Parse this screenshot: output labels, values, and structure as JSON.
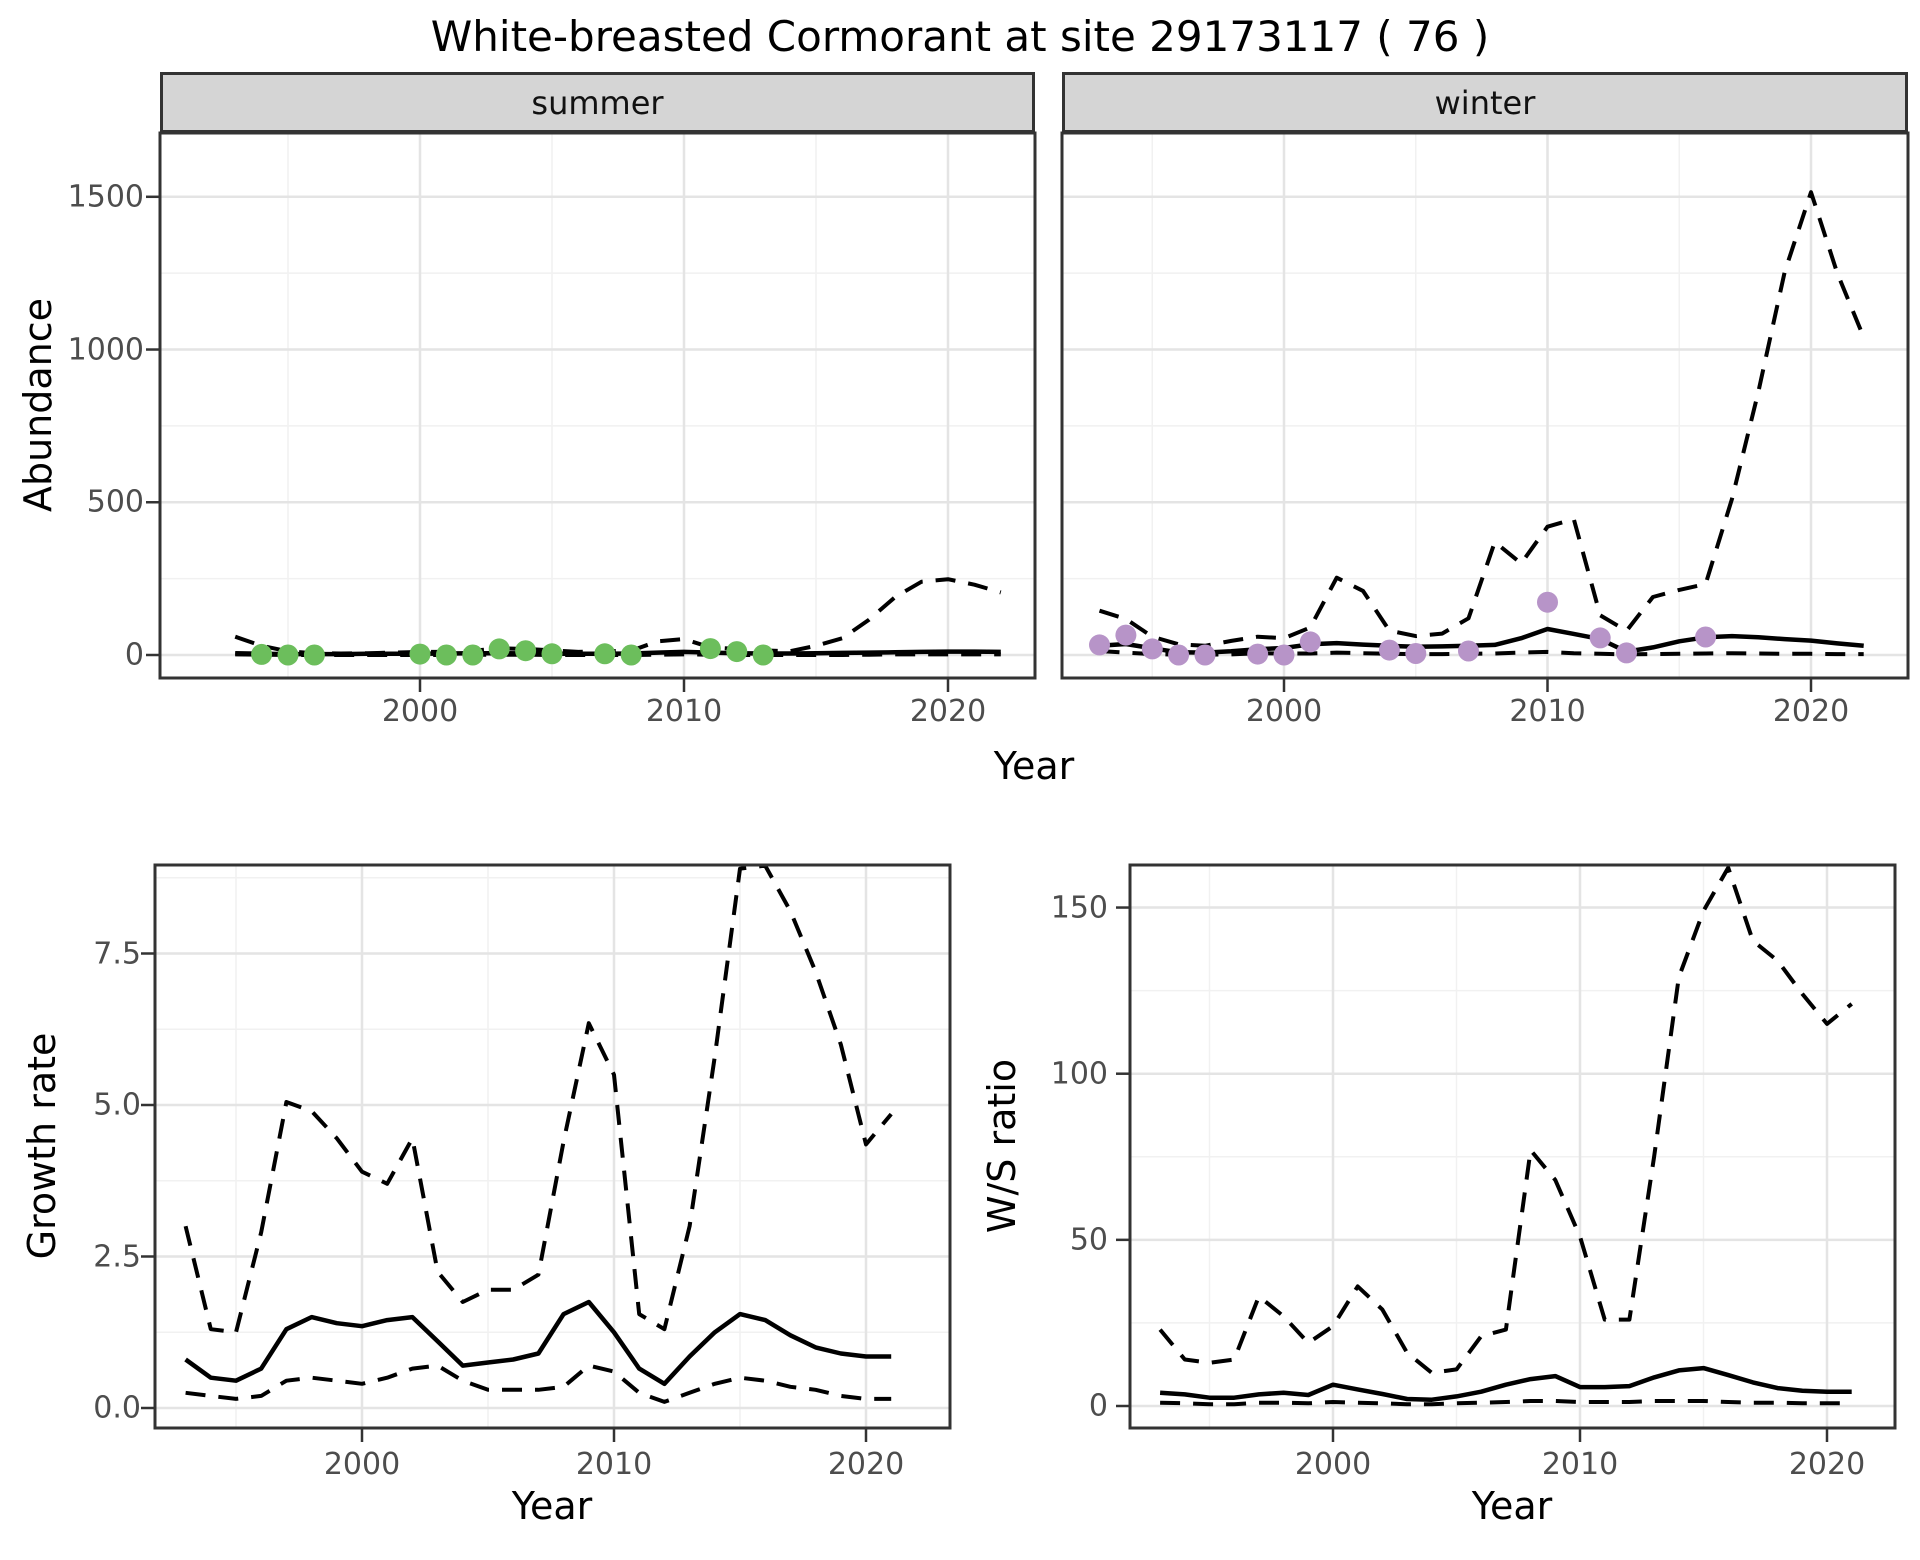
{
  "title": "White-breasted Cormorant at site 29173117 ( 76 )",
  "colors": {
    "summer_point": "#6cbe5c",
    "winter_point": "#b794c8",
    "line": "#000000",
    "strip_fill": "#d5d5d5",
    "grid_major": "#e4e4e4",
    "grid_minor": "#f1f1f1",
    "panel_border": "#333333",
    "axis_text": "#4d4d4d"
  },
  "chart_data": [
    {
      "id": "summer",
      "type": "line",
      "facet": "summer",
      "ylabel": "Abundance",
      "xlabel": "Year",
      "xlim": [
        1991.5,
        2023.5
      ],
      "ylim": [
        -75,
        1710
      ],
      "grid": true,
      "x_ticks": [
        2000,
        2010,
        2020
      ],
      "x_tick_labels": [
        "2000",
        "2010",
        "2020"
      ],
      "x_minor": [
        1995,
        2005,
        2015
      ],
      "y_ticks": [
        0,
        500,
        1000,
        1500
      ],
      "y_tick_labels": [
        "0",
        "500",
        "1000",
        "1500"
      ],
      "y_minor": [
        250,
        750,
        1250
      ],
      "x": [
        1993,
        1994,
        1995,
        1996,
        1997,
        1998,
        1999,
        2000,
        2001,
        2002,
        2003,
        2004,
        2005,
        2006,
        2007,
        2008,
        2009,
        2010,
        2011,
        2012,
        2013,
        2014,
        2015,
        2016,
        2017,
        2018,
        2019,
        2020,
        2021,
        2022
      ],
      "series": [
        {
          "name": "median",
          "style": "solid",
          "values": [
            6,
            4,
            3,
            3,
            3,
            4,
            4,
            4,
            5,
            6,
            6,
            5,
            4,
            4,
            4,
            5,
            8,
            10,
            8,
            6,
            5,
            5,
            6,
            7,
            8,
            9,
            10,
            11,
            11,
            10
          ]
        },
        {
          "name": "upper_ci",
          "style": "dashed",
          "values": [
            60,
            30,
            12,
            6,
            5,
            6,
            8,
            10,
            10,
            14,
            22,
            20,
            15,
            10,
            12,
            14,
            45,
            52,
            25,
            20,
            15,
            12,
            30,
            55,
            115,
            190,
            240,
            248,
            230,
            205
          ]
        },
        {
          "name": "lower_ci",
          "style": "dashed",
          "values": [
            2,
            1,
            0,
            0,
            0,
            0,
            0,
            0,
            0,
            1,
            1,
            1,
            0,
            0,
            0,
            0,
            1,
            2,
            1,
            0,
            0,
            0,
            0,
            0,
            1,
            2,
            2,
            2,
            2,
            2
          ]
        }
      ],
      "points": {
        "name": "observed_counts",
        "color": "#6cbe5c",
        "data": [
          [
            1994,
            2
          ],
          [
            1995,
            0
          ],
          [
            1996,
            0
          ],
          [
            2000,
            3
          ],
          [
            2001,
            0
          ],
          [
            2002,
            0
          ],
          [
            2003,
            20
          ],
          [
            2004,
            14
          ],
          [
            2005,
            4
          ],
          [
            2007,
            4
          ],
          [
            2008,
            0
          ],
          [
            2011,
            21
          ],
          [
            2012,
            11
          ],
          [
            2013,
            0
          ]
        ]
      }
    },
    {
      "id": "winter",
      "type": "line",
      "facet": "winter",
      "ylabel": "Abundance",
      "xlabel": "Year",
      "xlim": [
        1991.5,
        2023.5
      ],
      "ylim": [
        -75,
        1710
      ],
      "grid": true,
      "x_ticks": [
        2000,
        2010,
        2020
      ],
      "x_tick_labels": [
        "2000",
        "2010",
        "2020"
      ],
      "x_minor": [
        1995,
        2005,
        2015
      ],
      "y_ticks": [
        0,
        500,
        1000,
        1500
      ],
      "y_tick_labels": [
        "0",
        "500",
        "1000",
        "1500"
      ],
      "y_minor": [
        250,
        750,
        1250
      ],
      "x": [
        1993,
        1994,
        1995,
        1996,
        1997,
        1998,
        1999,
        2000,
        2001,
        2002,
        2003,
        2004,
        2005,
        2006,
        2007,
        2008,
        2009,
        2010,
        2011,
        2012,
        2013,
        2014,
        2015,
        2016,
        2017,
        2018,
        2019,
        2020,
        2021,
        2022
      ],
      "series": [
        {
          "name": "median",
          "style": "solid",
          "values": [
            30,
            36,
            22,
            9,
            8,
            12,
            19,
            23,
            35,
            39,
            34,
            30,
            27,
            28,
            30,
            33,
            55,
            85,
            69,
            52,
            11,
            25,
            45,
            58,
            62,
            58,
            52,
            47,
            38,
            30
          ]
        },
        {
          "name": "upper_ci",
          "style": "dashed",
          "values": [
            145,
            118,
            60,
            35,
            30,
            46,
            60,
            55,
            90,
            253,
            210,
            80,
            62,
            70,
            120,
            370,
            300,
            420,
            445,
            130,
            79,
            190,
            213,
            232,
            511,
            861,
            1254,
            1515,
            1250,
            1040
          ]
        },
        {
          "name": "lower_ci",
          "style": "dashed",
          "values": [
            13,
            8,
            3,
            1,
            1,
            2,
            6,
            5,
            5,
            8,
            6,
            4,
            3,
            3,
            4,
            5,
            8,
            10,
            6,
            4,
            2,
            3,
            4,
            5,
            6,
            5,
            4,
            4,
            3,
            3
          ]
        }
      ],
      "points": {
        "name": "observed_counts",
        "color": "#b794c8",
        "data": [
          [
            1993,
            33
          ],
          [
            1994,
            65
          ],
          [
            1995,
            20
          ],
          [
            1996,
            0
          ],
          [
            1997,
            0
          ],
          [
            1999,
            3
          ],
          [
            2000,
            0
          ],
          [
            2001,
            43
          ],
          [
            2004,
            16
          ],
          [
            2005,
            5
          ],
          [
            2007,
            13
          ],
          [
            2010,
            173
          ],
          [
            2012,
            56
          ],
          [
            2013,
            7
          ],
          [
            2016,
            59
          ]
        ]
      }
    },
    {
      "id": "growth_rate",
      "type": "line",
      "ylabel": "Growth rate",
      "xlabel": "Year",
      "xlim": [
        1991.9,
        2023.3
      ],
      "ylim": [
        -0.35,
        9.5
      ],
      "grid": true,
      "x_ticks": [
        2000,
        2010,
        2020
      ],
      "x_tick_labels": [
        "2000",
        "2010",
        "2020"
      ],
      "x_minor": [
        1995,
        2005,
        2015
      ],
      "y_ticks": [
        0,
        2.5,
        5,
        7.5
      ],
      "y_tick_labels": [
        "0.0",
        "2.5",
        "5.0",
        "7.5"
      ],
      "y_minor": [
        1.25,
        3.75,
        6.25,
        8.75
      ],
      "x": [
        1993,
        1994,
        1995,
        1996,
        1997,
        1998,
        1999,
        2000,
        2001,
        2002,
        2003,
        2004,
        2005,
        2006,
        2007,
        2008,
        2009,
        2010,
        2011,
        2012,
        2013,
        2014,
        2015,
        2016,
        2017,
        2018,
        2019,
        2020,
        2021
      ],
      "series": [
        {
          "name": "median",
          "style": "solid",
          "values": [
            0.8,
            0.5,
            0.45,
            0.65,
            1.3,
            1.5,
            1.4,
            1.35,
            1.45,
            1.5,
            1.1,
            0.7,
            0.75,
            0.8,
            0.9,
            1.55,
            1.75,
            1.25,
            0.65,
            0.4,
            0.85,
            1.25,
            1.55,
            1.45,
            1.2,
            1.0,
            0.9,
            0.85,
            0.85
          ]
        },
        {
          "name": "upper_ci",
          "style": "dashed",
          "values": [
            3.0,
            1.3,
            1.25,
            2.9,
            5.05,
            4.9,
            4.45,
            3.9,
            3.7,
            4.45,
            2.25,
            1.75,
            1.95,
            1.95,
            2.2,
            4.4,
            6.35,
            5.5,
            1.55,
            1.3,
            3.0,
            5.8,
            8.9,
            8.95,
            8.2,
            7.2,
            6.0,
            4.35,
            4.85
          ]
        },
        {
          "name": "lower_ci",
          "style": "dashed",
          "values": [
            0.25,
            0.2,
            0.15,
            0.2,
            0.45,
            0.5,
            0.45,
            0.4,
            0.5,
            0.65,
            0.7,
            0.45,
            0.3,
            0.3,
            0.3,
            0.35,
            0.7,
            0.6,
            0.25,
            0.1,
            0.25,
            0.4,
            0.5,
            0.45,
            0.35,
            0.3,
            0.2,
            0.15,
            0.15
          ]
        }
      ]
    },
    {
      "id": "ws_ratio",
      "type": "line",
      "ylabel": "W/S ratio",
      "xlabel": "Year",
      "xlim": [
        1991.9,
        2023.3
      ],
      "ylim": [
        -6,
        169
      ],
      "grid": true,
      "x_ticks": [
        2000,
        2010,
        2020
      ],
      "x_tick_labels": [
        "2000",
        "2010",
        "2020"
      ],
      "x_minor": [
        1995,
        2005,
        2015
      ],
      "y_ticks": [
        0,
        50,
        100,
        150
      ],
      "y_tick_labels": [
        "0",
        "50",
        "100",
        "150"
      ],
      "y_minor": [
        25,
        75,
        125
      ],
      "x": [
        1993,
        1994,
        1995,
        1996,
        1997,
        1998,
        1999,
        2000,
        2001,
        2002,
        2003,
        2004,
        2005,
        2006,
        2007,
        2008,
        2009,
        2010,
        2011,
        2012,
        2013,
        2014,
        2015,
        2016,
        2017,
        2018,
        2019,
        2020,
        2021
      ],
      "series": [
        {
          "name": "median",
          "style": "solid",
          "values": [
            4,
            3.5,
            2.5,
            2.5,
            3.5,
            4,
            3.3,
            6.4,
            5,
            3.6,
            2.1,
            1.9,
            2.9,
            4.3,
            6.4,
            8.1,
            9,
            5.7,
            5.7,
            6,
            8.6,
            10.7,
            11.4,
            9.3,
            7.1,
            5.4,
            4.6,
            4.3,
            4.3
          ]
        },
        {
          "name": "upper_ci",
          "style": "dashed",
          "values": [
            23,
            14,
            13,
            14,
            33,
            27,
            19,
            24,
            36,
            29,
            16,
            10,
            11,
            21,
            23,
            77,
            68,
            51,
            26,
            26,
            75,
            129,
            149,
            162,
            140,
            134,
            124,
            115,
            121
          ]
        },
        {
          "name": "lower_ci",
          "style": "dashed",
          "values": [
            1,
            0.8,
            0.5,
            0.5,
            1,
            1,
            0.8,
            1.2,
            1,
            0.8,
            0.5,
            0.5,
            0.8,
            1,
            1.2,
            1.5,
            1.5,
            1.2,
            1.2,
            1.2,
            1.5,
            1.5,
            1.5,
            1.2,
            1,
            1,
            0.8,
            0.8,
            0.8
          ]
        }
      ]
    }
  ]
}
